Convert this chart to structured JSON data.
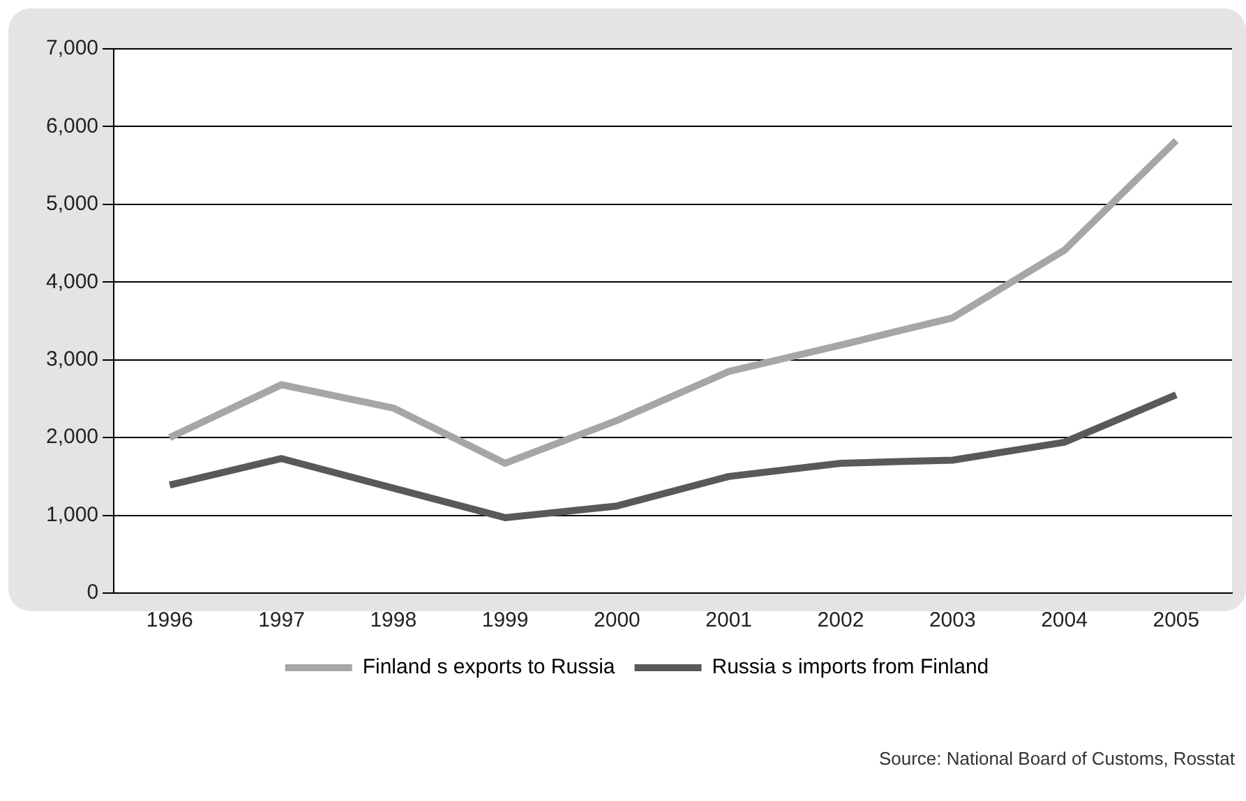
{
  "chart_data": {
    "type": "line",
    "categories": [
      "1996",
      "1997",
      "1998",
      "1999",
      "2000",
      "2001",
      "2002",
      "2003",
      "2004",
      "2005"
    ],
    "series": [
      {
        "name": "Finland s exports to Russia",
        "color": "#a6a6a6",
        "values": [
          2000,
          2680,
          2380,
          1670,
          2220,
          2850,
          3190,
          3540,
          4410,
          5820
        ]
      },
      {
        "name": "Russia s imports from Finland",
        "color": "#595959",
        "values": [
          1390,
          1730,
          1350,
          970,
          1120,
          1500,
          1670,
          1710,
          1940,
          2550
        ]
      }
    ],
    "ylim": [
      0,
      7000
    ],
    "yticks": [
      0,
      {
        "value": 1000,
        "label": "1,000"
      },
      {
        "value": 2000,
        "label": "2,000"
      },
      {
        "value": 3000,
        "label": "3,000"
      },
      {
        "value": 4000,
        "label": "4,000"
      },
      {
        "value": 5000,
        "label": "5,000"
      },
      {
        "value": 6000,
        "label": "6,000"
      },
      {
        "value": 7000,
        "label": "7,000"
      }
    ],
    "grid": "y",
    "legend": "bottom",
    "marker": "none",
    "line_style": "solid",
    "annotations": [
      "Source: National Board of Customs, Rosstat"
    ]
  }
}
